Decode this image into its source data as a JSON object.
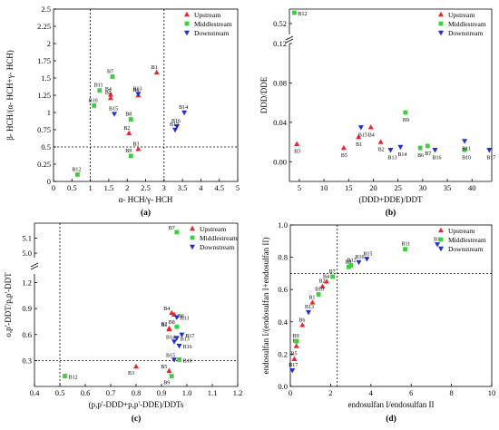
{
  "colors": {
    "Upstream": "#e8262b",
    "Middlestream": "#3ccf3c",
    "Downstream": "#1f2fd6"
  },
  "legend": [
    "Upstream",
    "Middlestream",
    "Downstream"
  ],
  "chart_data": [
    {
      "panel": "(a)",
      "type": "scatter",
      "xlabel": "α- HCH/γ- HCH",
      "ylabel": "β- HCH/(α- HCH+γ- HCH)",
      "xlim": [
        0,
        5
      ],
      "ylim": [
        0,
        2.5
      ],
      "xticks": [
        "0",
        "0.5",
        "1",
        "1.5",
        "2",
        "2.5",
        "3",
        "3.5",
        "4",
        "4.5",
        "5"
      ],
      "yticks": [
        "0",
        "0.25",
        "0.5",
        "0.75",
        "1",
        "1.25",
        "1.5",
        "1.75",
        "2",
        "2.25",
        "2.5"
      ],
      "vlines": [
        1,
        3
      ],
      "hlines": [
        0.5
      ],
      "legend_position": "top-right",
      "points": [
        {
          "label": "B1",
          "x": 2.8,
          "y": 1.58,
          "group": "Upstream"
        },
        {
          "label": "B2",
          "x": 2.05,
          "y": 0.7,
          "group": "Upstream"
        },
        {
          "label": "B3",
          "x": 2.3,
          "y": 0.47,
          "group": "Upstream"
        },
        {
          "label": "B4",
          "x": 1.55,
          "y": 1.26,
          "group": "Upstream"
        },
        {
          "label": "B5",
          "x": 1.55,
          "y": 1.21,
          "group": "Upstream"
        },
        {
          "label": "B6",
          "x": 2.3,
          "y": 1.25,
          "group": "Upstream"
        },
        {
          "label": "B7",
          "x": 1.6,
          "y": 1.52,
          "group": "Middlestream"
        },
        {
          "label": "B8",
          "x": 2.1,
          "y": 0.9,
          "group": "Middlestream"
        },
        {
          "label": "B9",
          "x": 2.1,
          "y": 0.37,
          "group": "Middlestream"
        },
        {
          "label": "B10",
          "x": 1.1,
          "y": 1.1,
          "group": "Middlestream"
        },
        {
          "label": "B11",
          "x": 1.25,
          "y": 1.32,
          "group": "Middlestream"
        },
        {
          "label": "B12",
          "x": 0.65,
          "y": 0.1,
          "group": "Middlestream"
        },
        {
          "label": "B13",
          "x": 2.3,
          "y": 1.27,
          "group": "Downstream"
        },
        {
          "label": "B14",
          "x": 3.55,
          "y": 1.0,
          "group": "Downstream"
        },
        {
          "label": "B15",
          "x": 1.65,
          "y": 0.98,
          "group": "Downstream"
        },
        {
          "label": "B16",
          "x": 3.35,
          "y": 0.8,
          "group": "Downstream"
        },
        {
          "label": "B17",
          "x": 3.3,
          "y": 0.75,
          "group": "Downstream"
        }
      ]
    },
    {
      "panel": "(b)",
      "type": "scatter",
      "xlabel": "(DDD+DDE)/DDT",
      "ylabel": "DDD/DDE",
      "xlim": [
        3,
        44
      ],
      "ylim": [
        -0.02,
        0.54
      ],
      "broken_y": {
        "lower": [
          -0.02,
          0.12
        ],
        "upper": [
          0.505,
          0.54
        ]
      },
      "xticks": [
        "5",
        "10",
        "15",
        "20",
        "25",
        "30",
        "35",
        "40"
      ],
      "yticks": [
        "0.00",
        "0.04",
        "0.08",
        "0.12",
        "0.52"
      ],
      "legend_position": "top-right",
      "points": [
        {
          "label": "B1",
          "x": 17.0,
          "y": 0.025,
          "group": "Upstream"
        },
        {
          "label": "B2",
          "x": 21.5,
          "y": 0.02,
          "group": "Upstream"
        },
        {
          "label": "B3",
          "x": 4.5,
          "y": 0.018,
          "group": "Upstream"
        },
        {
          "label": "B4",
          "x": 19.5,
          "y": 0.035,
          "group": "Upstream"
        },
        {
          "label": "B5",
          "x": 14.0,
          "y": 0.014,
          "group": "Upstream"
        },
        {
          "label": "B6",
          "x": 29.5,
          "y": 0.014,
          "group": "Middlestream"
        },
        {
          "label": "B7",
          "x": 31.0,
          "y": 0.016,
          "group": "Middlestream"
        },
        {
          "label": "B9",
          "x": 26.5,
          "y": 0.05,
          "group": "Middlestream"
        },
        {
          "label": "B10",
          "x": 38.5,
          "y": 0.012,
          "group": "Middlestream"
        },
        {
          "label": "B12",
          "x": 4.0,
          "y": 0.535,
          "group": "Middlestream"
        },
        {
          "label": "B11",
          "x": 38.5,
          "y": 0.021,
          "group": "Downstream"
        },
        {
          "label": "B13",
          "x": 23.5,
          "y": 0.012,
          "group": "Downstream"
        },
        {
          "label": "B14",
          "x": 25.5,
          "y": 0.015,
          "group": "Downstream"
        },
        {
          "label": "B15",
          "x": 17.5,
          "y": 0.035,
          "group": "Downstream"
        },
        {
          "label": "B16",
          "x": 32.5,
          "y": 0.012,
          "group": "Downstream"
        },
        {
          "label": "B17",
          "x": 43.5,
          "y": 0.012,
          "group": "Downstream"
        }
      ]
    },
    {
      "panel": "(c)",
      "type": "scatter",
      "xlabel": "(p,p'-DDD+p,p'-DDE)/DDTs",
      "ylabel": "o,p'-DDT/p,p'-DDT",
      "xlim": [
        0.4,
        1.2
      ],
      "ylim": [
        0,
        5.2
      ],
      "broken_y": {
        "lower": [
          0,
          1.3
        ],
        "upper": [
          4.97,
          5.2
        ]
      },
      "xticks": [
        "0.4",
        "0.5",
        "0.6",
        "0.7",
        "0.8",
        "0.9",
        "1.0",
        "1.1",
        "1.2"
      ],
      "yticks": [
        "0.3",
        "0.6",
        "0.9",
        "1.2",
        "5.0",
        "5.1"
      ],
      "vlines": [
        0.5
      ],
      "hlines": [
        0.3
      ],
      "legend_position": "top-right",
      "points": [
        {
          "label": "B1",
          "x": 0.93,
          "y": 0.66,
          "group": "Upstream"
        },
        {
          "label": "B2",
          "x": 0.93,
          "y": 0.67,
          "group": "Upstream"
        },
        {
          "label": "B3",
          "x": 0.8,
          "y": 0.23,
          "group": "Upstream"
        },
        {
          "label": "B4",
          "x": 0.94,
          "y": 0.85,
          "group": "Upstream"
        },
        {
          "label": "B5",
          "x": 0.93,
          "y": 0.18,
          "group": "Upstream"
        },
        {
          "label": "B6",
          "x": 0.95,
          "y": 0.83,
          "group": "Upstream"
        },
        {
          "label": "B7",
          "x": 0.96,
          "y": 5.14,
          "group": "Middlestream"
        },
        {
          "label": "B8",
          "x": 0.96,
          "y": 0.69,
          "group": "Middlestream"
        },
        {
          "label": "B9",
          "x": 0.94,
          "y": 0.12,
          "group": "Middlestream"
        },
        {
          "label": "B10",
          "x": 0.97,
          "y": 0.31,
          "group": "Middlestream"
        },
        {
          "label": "B12",
          "x": 0.52,
          "y": 0.12,
          "group": "Middlestream"
        },
        {
          "label": "B11",
          "x": 0.96,
          "y": 0.8,
          "group": "Downstream"
        },
        {
          "label": "B13",
          "x": 0.96,
          "y": 0.56,
          "group": "Downstream"
        },
        {
          "label": "B14",
          "x": 0.95,
          "y": 0.52,
          "group": "Downstream"
        },
        {
          "label": "B15",
          "x": 0.95,
          "y": 0.31,
          "group": "Downstream"
        },
        {
          "label": "B16",
          "x": 0.97,
          "y": 0.47,
          "group": "Downstream"
        },
        {
          "label": "B17",
          "x": 0.98,
          "y": 0.6,
          "group": "Downstream"
        }
      ]
    },
    {
      "panel": "(d)",
      "type": "scatter",
      "xlabel": "endosulfan I/endosulfan II",
      "ylabel": "endosulfan I/(endosulfan I+endosulfan II)",
      "xlim": [
        0,
        10
      ],
      "ylim": [
        0,
        1.0
      ],
      "xticks": [
        "0",
        "2",
        "4",
        "6",
        "8",
        "10"
      ],
      "yticks": [
        "0.0",
        "0.2",
        "0.4",
        "0.6",
        "0.8",
        "1.0"
      ],
      "vlines": [
        2.33
      ],
      "hlines": [
        0.7
      ],
      "legend_position": "top-right",
      "points": [
        {
          "label": "B1",
          "x": 1.1,
          "y": 0.52,
          "group": "Upstream"
        },
        {
          "label": "B2",
          "x": 1.6,
          "y": 0.62,
          "group": "Upstream"
        },
        {
          "label": "B3",
          "x": 0.3,
          "y": 0.25,
          "group": "Upstream"
        },
        {
          "label": "B4",
          "x": 1.8,
          "y": 0.65,
          "group": "Upstream"
        },
        {
          "label": "B5",
          "x": 0.2,
          "y": 0.17,
          "group": "Upstream"
        },
        {
          "label": "B6",
          "x": 0.6,
          "y": 0.38,
          "group": "Upstream"
        },
        {
          "label": "B7",
          "x": 2.1,
          "y": 0.68,
          "group": "Middlestream"
        },
        {
          "label": "B8",
          "x": 2.9,
          "y": 0.74,
          "group": "Middlestream"
        },
        {
          "label": "B9",
          "x": 0.3,
          "y": 0.28,
          "group": "Middlestream"
        },
        {
          "label": "B10",
          "x": 1.4,
          "y": 0.57,
          "group": "Middlestream"
        },
        {
          "label": "B11",
          "x": 5.7,
          "y": 0.85,
          "group": "Middlestream"
        },
        {
          "label": "B12",
          "x": 3.0,
          "y": 0.75,
          "group": "Middlestream"
        },
        {
          "label": "B13",
          "x": 0.9,
          "y": 0.46,
          "group": "Downstream"
        },
        {
          "label": "B14",
          "x": 7.3,
          "y": 0.88,
          "group": "Downstream"
        },
        {
          "label": "B15",
          "x": 3.8,
          "y": 0.79,
          "group": "Downstream"
        },
        {
          "label": "B16",
          "x": 3.4,
          "y": 0.77,
          "group": "Downstream"
        },
        {
          "label": "B17",
          "x": 0.1,
          "y": 0.1,
          "group": "Downstream"
        }
      ]
    }
  ]
}
